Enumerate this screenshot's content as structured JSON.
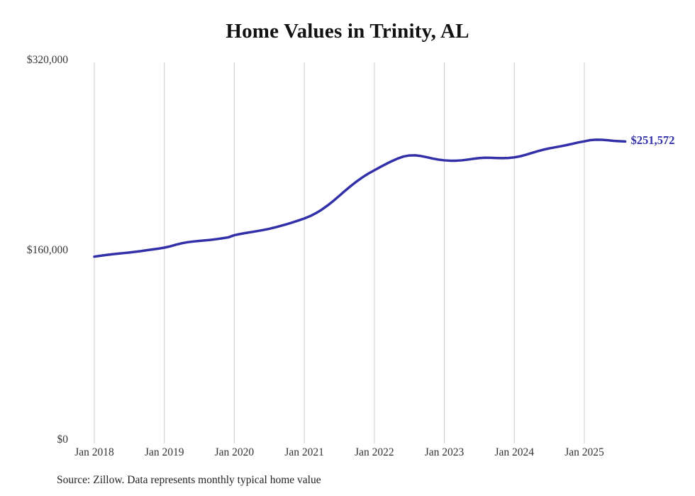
{
  "chart_data": {
    "type": "line",
    "title": "Home Values in Trinity, AL",
    "series_name": "Typical home value",
    "start_month": "2018-01",
    "x_tick_labels": [
      "Jan 2018",
      "Jan 2019",
      "Jan 2020",
      "Jan 2021",
      "Jan 2022",
      "Jan 2023",
      "Jan 2024",
      "Jan 2025"
    ],
    "y_ticks": [
      {
        "value": 320000,
        "label": "$320,000"
      },
      {
        "value": 160000,
        "label": "$160,000"
      },
      {
        "value": 0,
        "label": "$0"
      }
    ],
    "ylim": [
      0,
      320000
    ],
    "grid": "vertical",
    "legend": "none",
    "line_color": "#3230a8",
    "gridline_color": "#cccccc",
    "end_label": "$251,572",
    "last_value": 251572,
    "values": [
      154500,
      155200,
      155900,
      156500,
      157000,
      157500,
      158000,
      158600,
      159200,
      159900,
      160600,
      161300,
      162100,
      163200,
      164600,
      165800,
      166700,
      167300,
      167800,
      168200,
      168700,
      169300,
      170000,
      170800,
      172600,
      173600,
      174500,
      175300,
      176100,
      177000,
      178000,
      179200,
      180500,
      181900,
      183400,
      185000,
      186700,
      188700,
      191200,
      194200,
      197700,
      201600,
      205800,
      210100,
      214200,
      218000,
      221500,
      224600,
      227300,
      230000,
      232600,
      235000,
      237200,
      238900,
      239800,
      239900,
      239300,
      238300,
      237200,
      236300,
      235700,
      235400,
      235400,
      235700,
      236300,
      237000,
      237600,
      237900,
      237800,
      237600,
      237500,
      237700,
      238200,
      239100,
      240400,
      241900,
      243400,
      244700,
      245800,
      246700,
      247600,
      248600,
      249700,
      250800,
      251700,
      252700,
      253100,
      253000,
      252600,
      252100,
      251800,
      251572
    ]
  },
  "footer": {
    "source_text": "Source: Zillow. Data represents monthly typical home value"
  }
}
